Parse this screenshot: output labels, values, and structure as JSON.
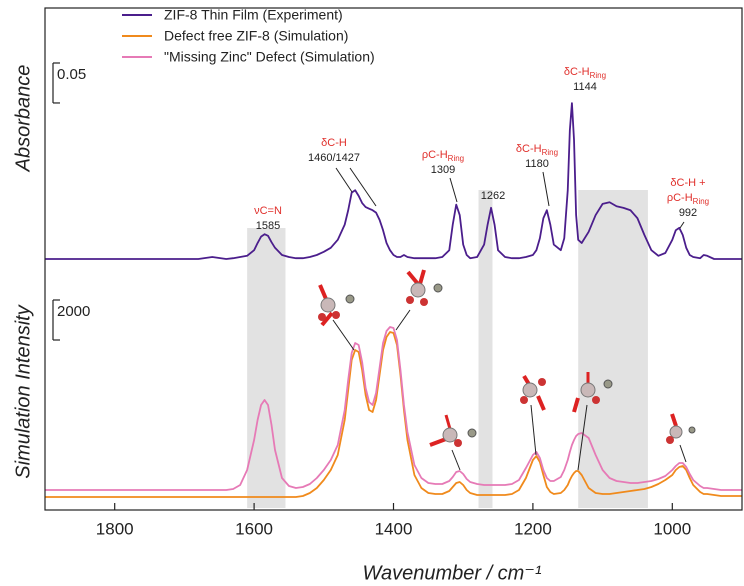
{
  "chart_data": {
    "type": "line",
    "xlabel": "Wavenumber / cm⁻¹",
    "ylabel": "Absorbance",
    "y2label": "Simulation Intensity",
    "xlim": [
      1900,
      900
    ],
    "xticks": [
      1800,
      1600,
      1400,
      1200,
      1000
    ],
    "ylim": [
      -0.314,
      0.314
    ],
    "y2lim": [
      -650,
      24450
    ],
    "y_scale_bar": 0.05,
    "y2_scale_bar": 2000,
    "legend": "upper left",
    "shaded_ranges": [
      [
        1610,
        1555
      ],
      [
        1278,
        1258
      ],
      [
        1135,
        1035
      ]
    ],
    "x": [
      1900,
      1880,
      1860,
      1840,
      1820,
      1800,
      1780,
      1760,
      1740,
      1720,
      1700,
      1680,
      1660,
      1640,
      1630,
      1620,
      1610,
      1600,
      1595,
      1590,
      1585,
      1580,
      1575,
      1570,
      1560,
      1550,
      1540,
      1530,
      1520,
      1510,
      1500,
      1490,
      1480,
      1470,
      1465,
      1460,
      1455,
      1450,
      1445,
      1440,
      1435,
      1430,
      1425,
      1420,
      1415,
      1410,
      1405,
      1400,
      1395,
      1390,
      1385,
      1380,
      1370,
      1360,
      1350,
      1340,
      1330,
      1320,
      1315,
      1310,
      1305,
      1300,
      1295,
      1290,
      1280,
      1270,
      1265,
      1260,
      1255,
      1250,
      1240,
      1230,
      1220,
      1210,
      1200,
      1195,
      1190,
      1185,
      1180,
      1175,
      1170,
      1160,
      1155,
      1150,
      1147,
      1144,
      1141,
      1138,
      1135,
      1130,
      1120,
      1110,
      1100,
      1090,
      1080,
      1070,
      1060,
      1050,
      1040,
      1030,
      1020,
      1010,
      1000,
      995,
      990,
      985,
      980,
      975,
      970,
      960,
      955,
      950,
      940,
      930,
      920,
      910,
      900
    ],
    "series": [
      {
        "name": "ZIF-8 Thin Film (Experiment)",
        "color": "#4b1e8c",
        "axis": "y",
        "values": [
          0,
          0,
          0,
          0,
          0,
          0,
          0,
          0,
          0,
          0,
          0,
          0,
          0.0025,
          0,
          0.001,
          0.0025,
          0.004,
          0.011,
          0.02,
          0.028,
          0.031,
          0.029,
          0.021,
          0.014,
          0.005,
          0.0025,
          0.001,
          0.001,
          0.0025,
          0.005,
          0.009,
          0.014,
          0.024,
          0.043,
          0.061,
          0.083,
          0.086,
          0.079,
          0.07,
          0.065,
          0.063,
          0.061,
          0.058,
          0.049,
          0.036,
          0.02,
          0.011,
          0.005,
          0.0025,
          0.0025,
          0.005,
          0.0025,
          0.001,
          0.001,
          0.001,
          0.001,
          0.0025,
          0.011,
          0.043,
          0.068,
          0.055,
          0.018,
          0.005,
          0.001,
          0.0025,
          0.018,
          0.043,
          0.064,
          0.043,
          0.011,
          0.0025,
          0.001,
          0.001,
          0.0025,
          0.005,
          0.011,
          0.026,
          0.051,
          0.061,
          0.043,
          0.018,
          0.011,
          0.026,
          0.086,
          0.161,
          0.195,
          0.149,
          0.055,
          0.024,
          0.02,
          0.034,
          0.055,
          0.069,
          0.071,
          0.066,
          0.064,
          0.061,
          0.051,
          0.03,
          0.011,
          0.004,
          0.0075,
          0.024,
          0.036,
          0.039,
          0.03,
          0.014,
          0.005,
          0.0025,
          0.001,
          0.005,
          0.004,
          0,
          0,
          0,
          0,
          0
        ]
      },
      {
        "name": "Defect free ZIF-8 (Simulation)",
        "color": "#f08a1c",
        "axis": "y2",
        "values": [
          0,
          0,
          0,
          0,
          0,
          0,
          0,
          0,
          0,
          0,
          0,
          0,
          0,
          0,
          0,
          0,
          0,
          0,
          0,
          0,
          0,
          0,
          0,
          0,
          0,
          0,
          0,
          50,
          200,
          450,
          850,
          1350,
          2100,
          3850,
          5350,
          6850,
          7350,
          7250,
          6350,
          5100,
          4350,
          4250,
          4850,
          6100,
          7350,
          8000,
          8250,
          8200,
          7600,
          6100,
          4350,
          2850,
          1100,
          450,
          200,
          150,
          150,
          300,
          500,
          700,
          750,
          600,
          350,
          200,
          100,
          100,
          100,
          100,
          100,
          100,
          100,
          150,
          350,
          950,
          1850,
          2050,
          1750,
          1100,
          500,
          250,
          150,
          200,
          350,
          600,
          850,
          1050,
          1200,
          1300,
          1300,
          1100,
          450,
          200,
          150,
          150,
          200,
          250,
          300,
          350,
          400,
          500,
          650,
          850,
          1100,
          1350,
          1500,
          1550,
          1350,
          950,
          600,
          250,
          150,
          150,
          100,
          50,
          50,
          50,
          50
        ]
      },
      {
        "name": "\"Missing Zinc\" Defect (Simulation)",
        "color": "#e67ab6",
        "axis": "y2",
        "values": [
          350,
          350,
          350,
          350,
          350,
          350,
          350,
          350,
          350,
          350,
          350,
          350,
          350,
          350,
          400,
          600,
          1350,
          2850,
          3850,
          4600,
          4850,
          4600,
          3600,
          2350,
          950,
          550,
          450,
          500,
          650,
          950,
          1350,
          1850,
          2600,
          4350,
          5850,
          7200,
          7700,
          7600,
          6750,
          5450,
          4750,
          4600,
          5200,
          6450,
          7700,
          8300,
          8500,
          8450,
          7850,
          6350,
          4600,
          3250,
          1600,
          950,
          700,
          650,
          650,
          800,
          1000,
          1250,
          1300,
          1150,
          900,
          750,
          650,
          600,
          600,
          600,
          600,
          600,
          600,
          650,
          850,
          1450,
          2100,
          2250,
          1950,
          1350,
          950,
          800,
          800,
          1000,
          1350,
          1850,
          2250,
          2600,
          2850,
          3050,
          3150,
          3200,
          2950,
          2100,
          1350,
          950,
          800,
          750,
          700,
          700,
          750,
          800,
          900,
          1050,
          1350,
          1550,
          1700,
          1700,
          1500,
          1150,
          850,
          550,
          450,
          450,
          400,
          350,
          350,
          350,
          350
        ]
      }
    ],
    "annotations": [
      {
        "lines": [
          {
            "text": "νC=N"
          }
        ],
        "number": "1585"
      },
      {
        "lines": [
          {
            "text": "δC-H"
          }
        ],
        "number": "1460/1427"
      },
      {
        "lines": [
          {
            "text": "ρC-H",
            "sub": "Ring"
          }
        ],
        "number": "1309"
      },
      {
        "number": "1262"
      },
      {
        "lines": [
          {
            "text": "δC-H",
            "sub": "Ring"
          }
        ],
        "number": "1180"
      },
      {
        "lines": [
          {
            "text": "δC-H",
            "sub": "Ring"
          }
        ],
        "number": "1144"
      },
      {
        "lines": [
          {
            "text": "δC-H +"
          },
          {
            "text": "ρC-H",
            "sub": "Ring"
          }
        ],
        "number": "992"
      }
    ]
  }
}
